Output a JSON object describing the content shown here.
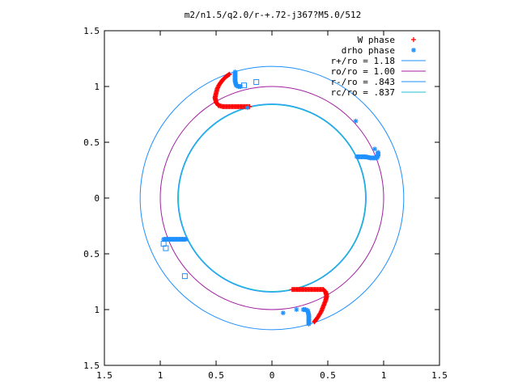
{
  "chart_data": {
    "type": "scatter",
    "title": "m2/n1.5/q2.0/r-+.72-j367?M5.0/512",
    "xlabel": "",
    "ylabel": "",
    "xlim": [
      -1.5,
      1.5
    ],
    "ylim": [
      -1.5,
      1.5
    ],
    "x_ticks": [
      -1.5,
      -1,
      -0.5,
      0,
      0.5,
      1,
      1.5
    ],
    "x_tick_labels": [
      "1.5",
      "1",
      "0.5",
      "0",
      "0.5",
      "1",
      "1.5"
    ],
    "y_ticks": [
      1.5,
      1,
      0.5,
      0,
      -0.5,
      -1,
      -1.5
    ],
    "y_tick_labels": [
      "1.5",
      "1",
      "0.5",
      "0",
      "0.5",
      "1",
      "1.5"
    ],
    "grid": false,
    "legend_position": "top-right",
    "circles": [
      {
        "label": "r+/ro = 1.18",
        "radius": 1.18,
        "color": "#1e90ff"
      },
      {
        "label": "ro/ro = 1.00",
        "radius": 1.0,
        "color": "#a020a0"
      },
      {
        "label": "r-/ro =  .843",
        "radius": 0.843,
        "color": "#1e90ff"
      },
      {
        "label": "rc/ro =  .837",
        "radius": 0.837,
        "color": "#20c0d0"
      }
    ],
    "series": [
      {
        "name": "W phase",
        "marker": "plus",
        "color": "#ff0000",
        "segments": [
          [
            [
              -0.38,
              1.11
            ],
            [
              -0.41,
              1.09
            ],
            [
              -0.44,
              1.06
            ],
            [
              -0.47,
              1.02
            ],
            [
              -0.49,
              0.98
            ],
            [
              -0.5,
              0.94
            ],
            [
              -0.51,
              0.9
            ],
            [
              -0.5,
              0.86
            ],
            [
              -0.48,
              0.83
            ],
            [
              -0.44,
              0.82
            ],
            [
              -0.4,
              0.82
            ],
            [
              -0.36,
              0.82
            ],
            [
              -0.32,
              0.82
            ],
            [
              -0.28,
              0.82
            ],
            [
              -0.24,
              0.82
            ],
            [
              -0.2,
              0.82
            ]
          ],
          [
            [
              0.38,
              -1.11
            ],
            [
              0.41,
              -1.07
            ],
            [
              0.44,
              -1.02
            ],
            [
              0.46,
              -0.97
            ],
            [
              0.48,
              -0.92
            ],
            [
              0.49,
              -0.88
            ],
            [
              0.48,
              -0.84
            ],
            [
              0.46,
              -0.82
            ],
            [
              0.42,
              -0.82
            ],
            [
              0.38,
              -0.82
            ],
            [
              0.34,
              -0.82
            ],
            [
              0.3,
              -0.82
            ],
            [
              0.26,
              -0.82
            ],
            [
              0.22,
              -0.82
            ],
            [
              0.18,
              -0.82
            ]
          ]
        ]
      },
      {
        "name": "drho phase",
        "marker": "star",
        "color": "#1e90ff",
        "segments": [
          [
            [
              -0.33,
              1.13
            ],
            [
              -0.33,
              1.09
            ],
            [
              -0.33,
              1.05
            ],
            [
              -0.32,
              1.01
            ],
            [
              -0.3,
              1.0
            ],
            [
              -0.28,
              1.0
            ]
          ],
          [
            [
              0.76,
              0.37
            ],
            [
              0.8,
              0.37
            ],
            [
              0.84,
              0.37
            ],
            [
              0.88,
              0.36
            ],
            [
              0.92,
              0.36
            ],
            [
              0.94,
              0.36
            ],
            [
              0.95,
              0.38
            ],
            [
              0.95,
              0.41
            ]
          ],
          [
            [
              -0.97,
              -0.37
            ],
            [
              -0.93,
              -0.37
            ],
            [
              -0.89,
              -0.37
            ],
            [
              -0.85,
              -0.37
            ],
            [
              -0.81,
              -0.37
            ],
            [
              -0.77,
              -0.37
            ]
          ],
          [
            [
              0.33,
              -1.13
            ],
            [
              0.33,
              -1.09
            ],
            [
              0.33,
              -1.05
            ],
            [
              0.32,
              -1.01
            ],
            [
              0.3,
              -1.0
            ],
            [
              0.28,
              -1.0
            ]
          ]
        ],
        "outliers": [
          [
            0.75,
            0.69
          ],
          [
            0.92,
            0.44
          ],
          [
            0.1,
            -1.03
          ],
          [
            -0.22,
            0.81
          ],
          [
            0.22,
            -1.0
          ]
        ]
      },
      {
        "name": "",
        "marker": "square",
        "color": "#1e90ff",
        "segments": [],
        "outliers": [
          [
            -0.25,
            1.01
          ],
          [
            -0.14,
            1.04
          ],
          [
            -0.95,
            -0.45
          ],
          [
            -0.97,
            -0.41
          ],
          [
            -0.78,
            -0.7
          ]
        ]
      }
    ]
  }
}
